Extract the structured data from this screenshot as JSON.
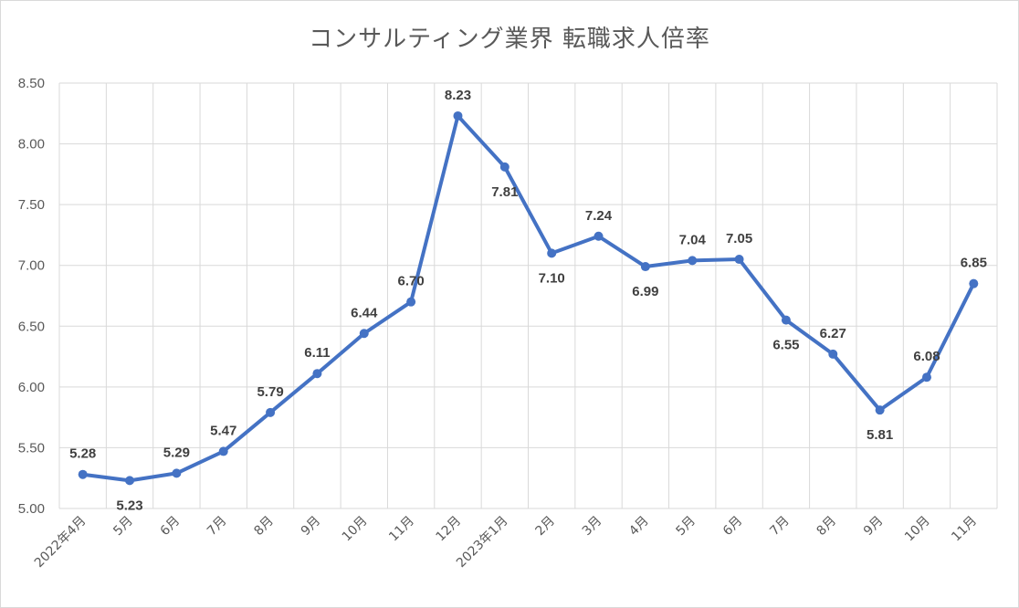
{
  "chart_data": {
    "type": "line",
    "title": "コンサルティング業界 転職求人倍率",
    "xlabel": "",
    "ylabel": "",
    "categories": [
      "2022年4月",
      "5月",
      "6月",
      "7月",
      "8月",
      "9月",
      "10月",
      "11月",
      "12月",
      "2023年1月",
      "2月",
      "3月",
      "4月",
      "5月",
      "6月",
      "7月",
      "8月",
      "9月",
      "10月",
      "11月"
    ],
    "values": [
      5.28,
      5.23,
      5.29,
      5.47,
      5.79,
      6.11,
      6.44,
      6.7,
      8.23,
      7.81,
      7.1,
      7.24,
      6.99,
      7.04,
      7.05,
      6.55,
      6.27,
      5.81,
      6.08,
      6.85
    ],
    "data_labels": [
      "5.28",
      "5.23",
      "5.29",
      "5.47",
      "5.79",
      "6.11",
      "6.44",
      "6.70",
      "8.23",
      "7.81",
      "7.10",
      "7.24",
      "6.99",
      "7.04",
      "7.05",
      "6.55",
      "6.27",
      "5.81",
      "6.08",
      "6.85"
    ],
    "ylim": [
      5.0,
      8.5
    ],
    "yticks": [
      "5.00",
      "5.50",
      "6.00",
      "6.50",
      "7.00",
      "7.50",
      "8.00",
      "8.50"
    ],
    "grid": true,
    "legend": "none",
    "line_color": "#4472c4",
    "grid_color": "#d9d9d9"
  }
}
